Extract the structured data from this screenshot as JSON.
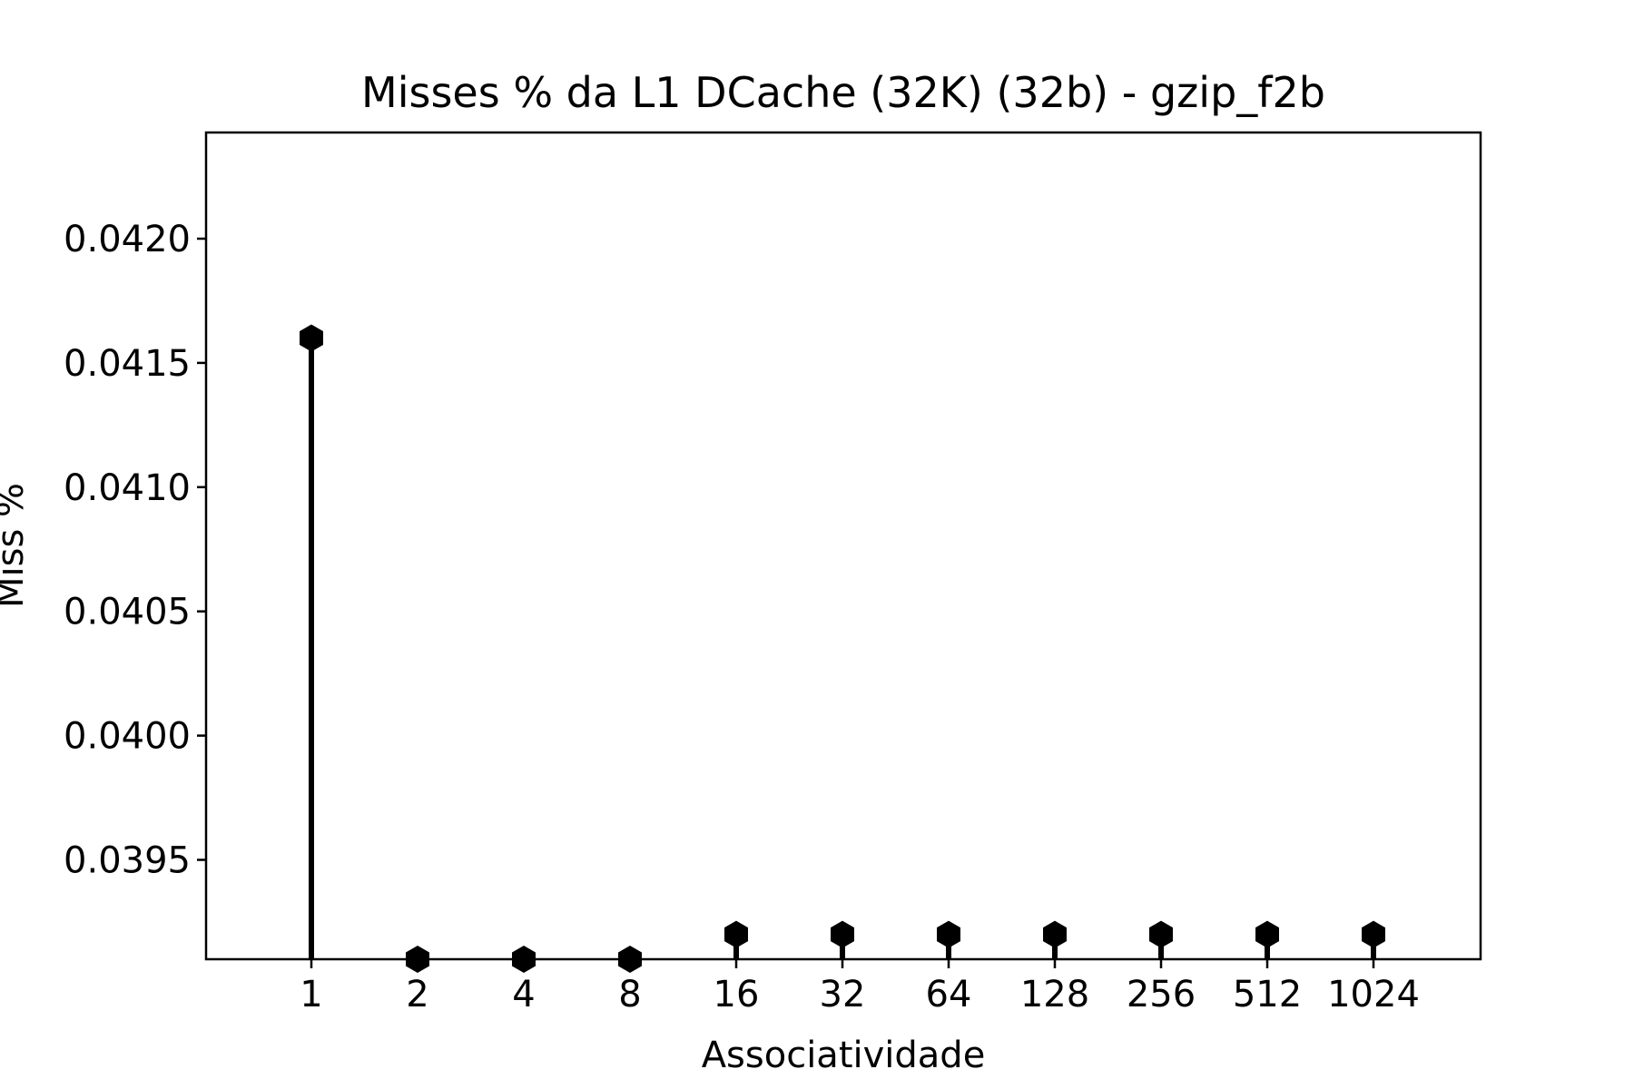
{
  "chart_data": {
    "type": "stem",
    "title": "Misses % da L1 DCache (32K) (32b) - gzip_f2b",
    "xlabel": "Associatividade",
    "ylabel": "Miss %",
    "categories": [
      "1",
      "2",
      "4",
      "8",
      "16",
      "32",
      "64",
      "128",
      "256",
      "512",
      "1024"
    ],
    "values": [
      0.0416,
      0.0391,
      0.0391,
      0.0391,
      0.0392,
      0.0392,
      0.0392,
      0.0392,
      0.0392,
      0.0392,
      0.0392
    ],
    "ylim": [
      0.0391,
      0.0424
    ],
    "yticks": [
      "0.0395",
      "0.0400",
      "0.0405",
      "0.0410",
      "0.0415",
      "0.0420"
    ],
    "marker": "hexagon",
    "color": "#000000",
    "grid": false,
    "legend": "none"
  }
}
